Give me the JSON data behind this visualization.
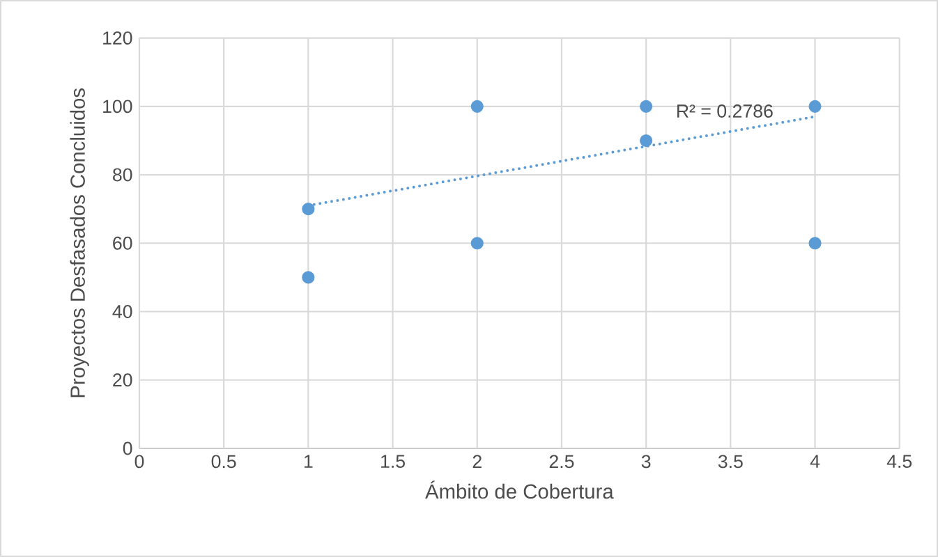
{
  "chart_data": {
    "type": "scatter",
    "xlabel": "Ámbito de Cobertura",
    "ylabel": "Proyectos Desfasados Concluidos",
    "series": [
      {
        "color": "#5b9bd5",
        "marker": "circle",
        "x": [
          1,
          1,
          2,
          2,
          3,
          3,
          4,
          4
        ],
        "values": [
          70,
          50,
          100,
          60,
          100,
          90,
          100,
          60
        ]
      },
      {
        "type": "line",
        "color": "#5b9bd5",
        "line_style": "dotted",
        "marker": "none",
        "x": [
          1,
          4
        ],
        "values": [
          71,
          97
        ]
      }
    ],
    "annotations": [
      "R² = 0.2786"
    ],
    "xlim": [
      0,
      4.5
    ],
    "xticks": [
      0,
      0.5,
      1,
      1.5,
      2,
      2.5,
      3,
      3.5,
      4,
      4.5
    ],
    "ylim": [
      0,
      120
    ],
    "yticks": [
      0,
      20,
      40,
      60,
      80,
      100,
      120
    ],
    "grid": true
  }
}
